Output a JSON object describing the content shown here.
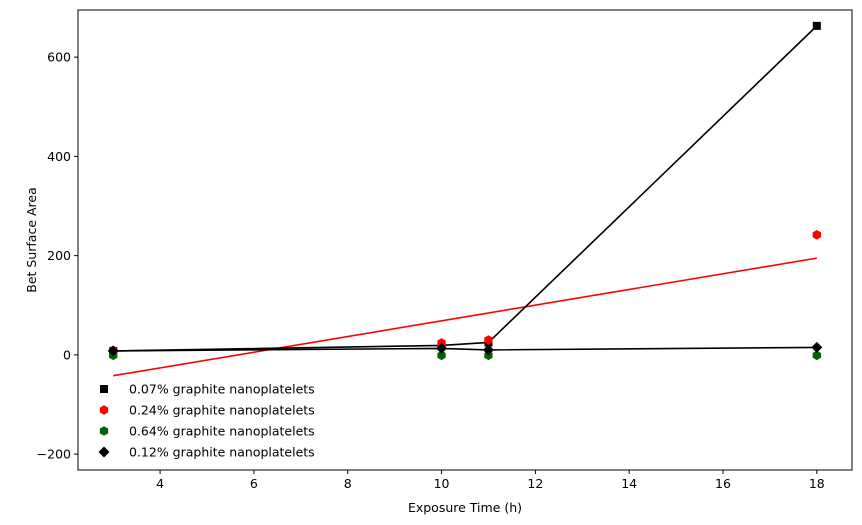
{
  "chart_data": {
    "type": "scatter",
    "title": "",
    "xlabel": "Exposure Time (h)",
    "ylabel": "Bet Surface Area",
    "xlim": [
      2.25,
      18.75
    ],
    "ylim": [
      -232,
      695
    ],
    "xticks": [
      4,
      6,
      8,
      10,
      12,
      14,
      16,
      18
    ],
    "yticks": [
      -200,
      0,
      200,
      400,
      600
    ],
    "grid": false,
    "legend_position": "lower-left",
    "series": [
      {
        "name": "0.07% graphite nanoplatelets",
        "marker": "square",
        "color": "#000000",
        "line_color": "#000000",
        "line_type": "connect",
        "points": [
          [
            3,
            8
          ],
          [
            10,
            19
          ],
          [
            11,
            25
          ],
          [
            18,
            663
          ]
        ]
      },
      {
        "name": "0.24% graphite nanoplatelets",
        "marker": "hexagon",
        "color": "#ff0000",
        "line_color": "#ff0000",
        "line_type": "fit",
        "fit_line": [
          [
            3,
            -42
          ],
          [
            18,
            195
          ]
        ],
        "points": [
          [
            3,
            9
          ],
          [
            10,
            24
          ],
          [
            11,
            30
          ],
          [
            18,
            242
          ]
        ]
      },
      {
        "name": "0.64% graphite nanoplatelets",
        "marker": "hexagon",
        "color": "#006400",
        "line_color": "",
        "line_type": "none",
        "points": [
          [
            3,
            -1
          ],
          [
            10,
            -1
          ],
          [
            11,
            -1
          ],
          [
            18,
            -1
          ]
        ]
      },
      {
        "name": "0.12% graphite nanoplatelets",
        "marker": "diamond",
        "color": "#000000",
        "line_color": "#000000",
        "line_type": "connect",
        "points": [
          [
            3,
            8
          ],
          [
            10,
            13
          ],
          [
            11,
            10
          ],
          [
            18,
            15
          ]
        ]
      }
    ]
  }
}
